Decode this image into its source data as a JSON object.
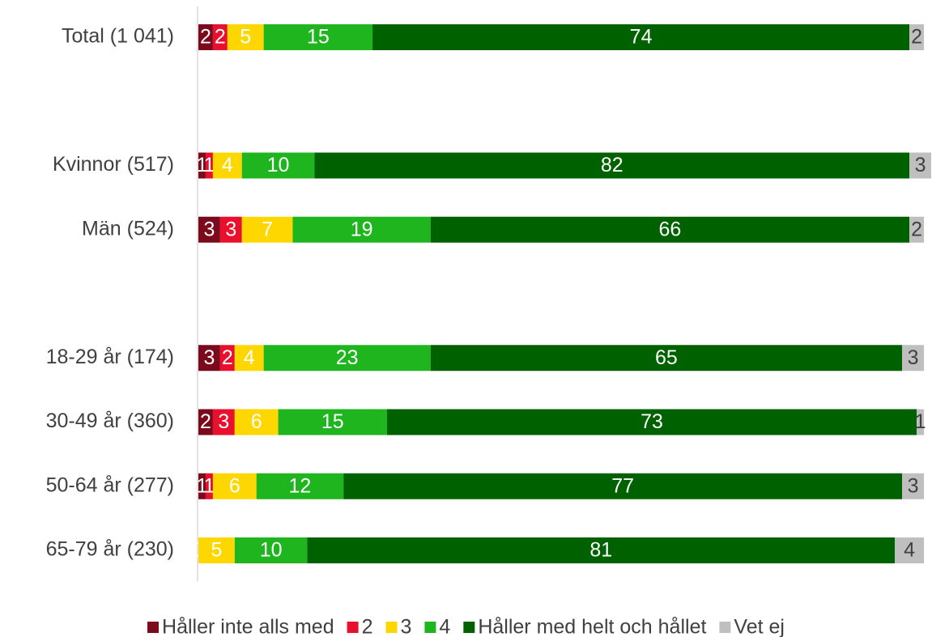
{
  "chart_data": {
    "type": "bar",
    "orientation": "horizontal",
    "stacked": true,
    "categories": [
      "Total (1 041)",
      null,
      "Kvinnor (517)",
      "Män (524)",
      null,
      "18-29 år (174)",
      "30-49 år (360)",
      "50-64 år (277)",
      "65-79 år (230)"
    ],
    "series": [
      {
        "name": "Håller inte alls med",
        "color": "#7b0a1c",
        "values": [
          2,
          null,
          1,
          3,
          null,
          3,
          2,
          1,
          0
        ]
      },
      {
        "name": "2",
        "color": "#e8102c",
        "values": [
          2,
          null,
          1,
          3,
          null,
          2,
          3,
          1,
          0
        ]
      },
      {
        "name": "3",
        "color": "#ffd700",
        "values": [
          5,
          null,
          4,
          7,
          null,
          4,
          6,
          6,
          5
        ]
      },
      {
        "name": "4",
        "color": "#1fb51f",
        "values": [
          15,
          null,
          10,
          19,
          null,
          23,
          15,
          12,
          10
        ]
      },
      {
        "name": "Håller med helt och hållet",
        "color": "#006100",
        "values": [
          74,
          null,
          82,
          66,
          null,
          65,
          73,
          77,
          81
        ]
      },
      {
        "name": "Vet ej",
        "color": "#bfbfbf",
        "values": [
          2,
          null,
          3,
          2,
          null,
          3,
          1,
          3,
          4
        ]
      }
    ],
    "legend": "bottom"
  }
}
